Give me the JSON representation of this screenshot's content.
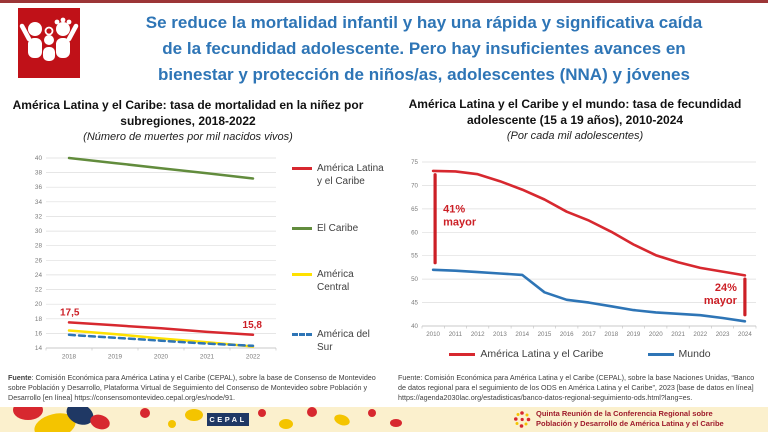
{
  "header": {
    "icon_name": "family-icon",
    "icon_bg": "#C01118",
    "title_color": "#2E75B6",
    "title_lines": [
      "Se reduce la mortalidad infantil y hay una rápida y significativa caída",
      "de la fecundidad adolescente. Pero hay insuficientes avances en",
      "bienestar y protección de niños/as, adolescentes (NNA) y jóvenes"
    ]
  },
  "chart_data": [
    {
      "type": "line",
      "title": "América Latina y el Caribe: tasa de mortalidad en la niñez por subregiones, 2018-2022",
      "subtitle": "(Número de muertes por mil nacidos vivos)",
      "categories": [
        "2018",
        "2019",
        "2020",
        "2021",
        "2022"
      ],
      "ylim": [
        14,
        40
      ],
      "ytick_step": 2,
      "grid": true,
      "legend_position": "right",
      "series": [
        {
          "name": "América Latina y el Caribe",
          "color": "#D7282F",
          "dash": false,
          "values": [
            17.5,
            17.1,
            16.7,
            16.2,
            15.8
          ]
        },
        {
          "name": "El Caribe",
          "color": "#628C3D",
          "dash": false,
          "values": [
            40.0,
            39.3,
            38.6,
            37.9,
            37.2
          ]
        },
        {
          "name": "América Central",
          "color": "#FFE100",
          "dash": false,
          "values": [
            16.4,
            15.9,
            15.3,
            14.8,
            14.2
          ]
        },
        {
          "name": "América del Sur",
          "color": "#2E75B6",
          "dash": true,
          "values": [
            15.8,
            15.4,
            15.0,
            14.6,
            14.3
          ]
        }
      ],
      "point_labels": [
        {
          "text": "17,5",
          "series": 0,
          "index": 0
        },
        {
          "text": "15,8",
          "series": 0,
          "index": 4
        }
      ]
    },
    {
      "type": "line",
      "title": "América Latina y el Caribe y el mundo: tasa de fecundidad adolescente (15 a 19 años), 2010-2024",
      "subtitle": "(Por cada mil adolescentes)",
      "categories": [
        "2010",
        "2011",
        "2012",
        "2013",
        "2014",
        "2015",
        "2016",
        "2017",
        "2018",
        "2019",
        "2020",
        "2021",
        "2022",
        "2023",
        "2024"
      ],
      "ylim": [
        40,
        75
      ],
      "ytick_step": 5,
      "grid": true,
      "legend_position": "bottom",
      "series": [
        {
          "name": "América Latina y el Caribe",
          "color": "#D7282F",
          "dash": false,
          "values": [
            73.1,
            73.0,
            72.4,
            70.9,
            69.1,
            67.0,
            64.4,
            62.5,
            60.1,
            57.4,
            55.1,
            53.6,
            52.4,
            51.6,
            50.8
          ]
        },
        {
          "name": "Mundo",
          "color": "#2E75B6",
          "dash": false,
          "values": [
            52.0,
            51.8,
            51.5,
            51.2,
            50.9,
            47.2,
            45.6,
            45.0,
            44.2,
            43.4,
            42.9,
            42.6,
            42.3,
            41.7,
            41.0
          ]
        }
      ],
      "brackets": [
        {
          "label_lines": [
            "41%",
            "mayor"
          ],
          "x": "2010",
          "y_from": 53.5,
          "y_to": 72.3,
          "label_side": "right"
        },
        {
          "label_lines": [
            "24%",
            "mayor"
          ],
          "x": "2024",
          "y_from": 42.4,
          "y_to": 50.0,
          "label_side": "left"
        }
      ]
    }
  ],
  "sources": {
    "left_label": "Fuente",
    "left_text": ": Comisión Económica para América Latina y el Caribe (CEPAL), sobre la base de Consenso de Montevideo sobre Población y Desarrollo, Plataforma Virtual de Seguimiento del Consenso de Montevideo sobre Población y Desarrollo [en línea] https://consensomontevideo.cepal.org/es/node/91.",
    "right_text": "Fuente: Comisión Económica para América Latina y el Caribe (CEPAL), sobre la base Naciones Unidas, “Banco de datos regional para el seguimiento de los ODS en América Latina y el Caribe”, 2023 [base de datos en línea] https://agenda2030lac.org/estadisticas/banco-datos-regional-seguimiento-ods.html?lang=es."
  },
  "footer": {
    "cepal_logo_text": "CEPAL",
    "event_line1": "Quinta Reunión de la Conferencia Regional sobre",
    "event_line2": "Población y Desarrollo de América Latina y el Caribe",
    "bg_color": "#FBF0CD",
    "text_color": "#9E1B2B"
  },
  "colors": {
    "accent_red": "#CC1F26",
    "header_blue": "#2E75B6",
    "grid_gray": "#DEDEDE",
    "axis_gray": "#7B7B7B"
  }
}
